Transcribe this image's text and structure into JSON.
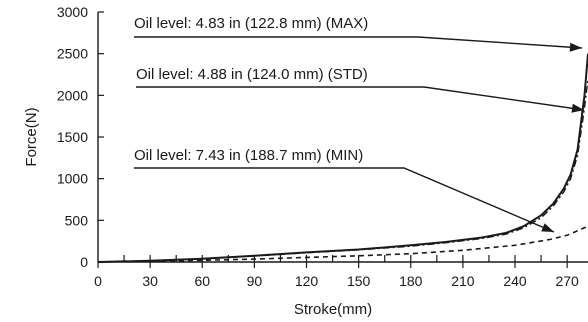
{
  "chart_data": {
    "type": "line",
    "xlabel": "Stroke(mm)",
    "ylabel": "Force(N)",
    "xlim": [
      0,
      282
    ],
    "ylim": [
      0,
      3000
    ],
    "x_ticks": [
      0,
      30,
      60,
      90,
      120,
      150,
      180,
      210,
      240,
      270
    ],
    "x_tick_labels": [
      "0",
      "30",
      "60",
      "90",
      "120",
      "150",
      "180",
      "210",
      "240",
      "270"
    ],
    "y_ticks": [
      0,
      500,
      1000,
      1500,
      2000,
      2500,
      3000
    ],
    "y_tick_labels": [
      "0",
      "500",
      "1000",
      "1500",
      "2000",
      "2500",
      "3000"
    ],
    "grid": false,
    "series": [
      {
        "name": "Oil level: 4.83 in (122.8 mm) (MAX)",
        "style": "solid",
        "color": "#1a1a1a",
        "x": [
          0,
          30,
          60,
          90,
          120,
          150,
          180,
          200,
          220,
          235,
          245,
          255,
          262,
          268,
          272,
          276,
          280,
          282
        ],
        "y": [
          0,
          15,
          40,
          75,
          115,
          150,
          200,
          240,
          290,
          350,
          430,
          560,
          700,
          880,
          1050,
          1350,
          2000,
          2500
        ]
      },
      {
        "name": "Oil level: 4.88 in (124.0 mm) (STD)",
        "style": "dash-dot",
        "color": "#1a1a1a",
        "x": [
          0,
          30,
          60,
          90,
          120,
          150,
          180,
          200,
          220,
          235,
          245,
          255,
          262,
          268,
          272,
          276,
          280,
          282
        ],
        "y": [
          0,
          14,
          38,
          72,
          110,
          145,
          190,
          230,
          280,
          335,
          410,
          530,
          670,
          840,
          1000,
          1280,
          1850,
          2200
        ]
      },
      {
        "name": "Oil level: 7.43 in (188.7 mm) (MIN)",
        "style": "dashed",
        "color": "#1a1a1a",
        "x": [
          0,
          30,
          60,
          90,
          120,
          150,
          180,
          210,
          240,
          260,
          270,
          282
        ],
        "y": [
          0,
          8,
          20,
          35,
          55,
          75,
          100,
          140,
          200,
          270,
          320,
          430
        ]
      }
    ]
  }
}
